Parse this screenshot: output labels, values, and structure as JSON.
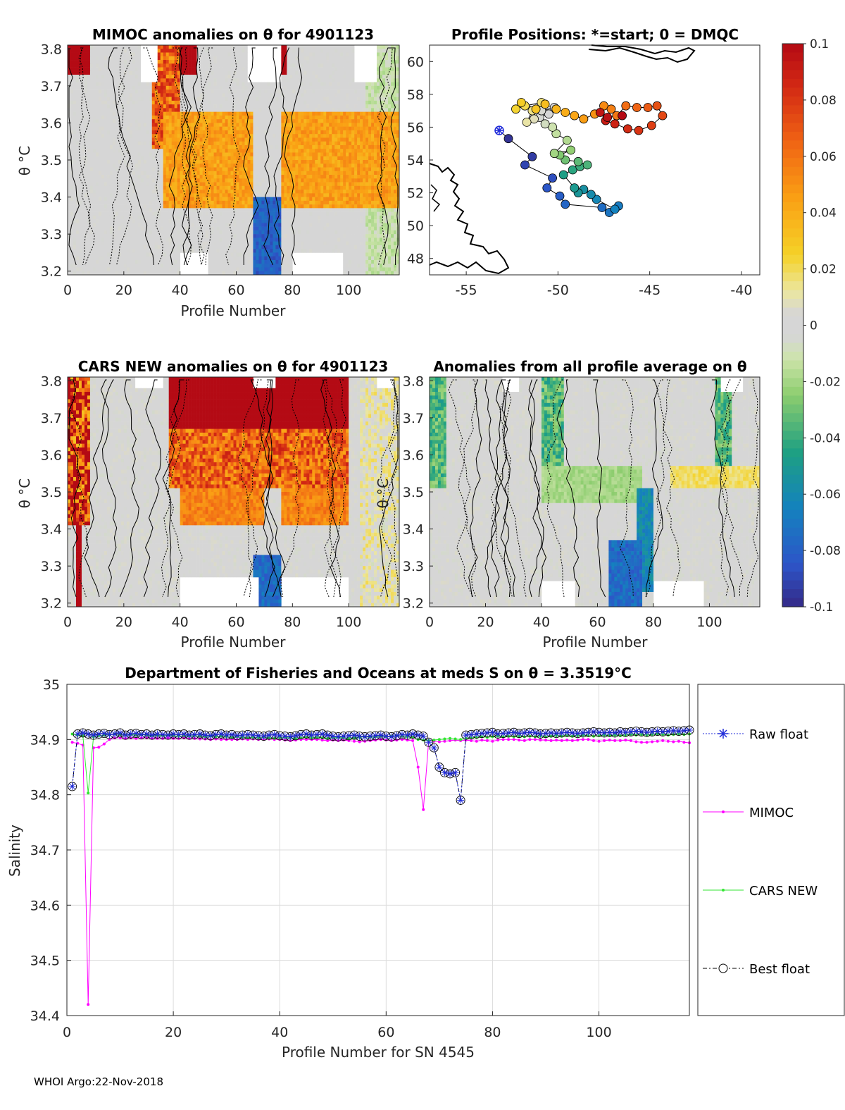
{
  "footer": "WHOI Argo:22-Nov-2018",
  "colors": {
    "raw_float": "#1f2bd9",
    "mimoc": "#ff00ff",
    "cars": "#33e633",
    "best": "#000000",
    "grid": "#dcdcdc",
    "axis": "#262626"
  },
  "chart_data": [
    {
      "id": "mimoc_panel",
      "type": "heatmap",
      "title": "MIMOC anomalies on θ  for 4901123",
      "xlabel": "Profile Number",
      "ylabel": "θ °C",
      "xlim": [
        0,
        118
      ],
      "ylim": [
        3.19,
        3.81
      ],
      "xticks": [
        "0",
        "20",
        "40",
        "60",
        "80",
        "100"
      ],
      "yticks": [
        "3.2",
        "3.3",
        "3.4",
        "3.5",
        "3.6",
        "3.7",
        "3.8"
      ]
    },
    {
      "id": "positions_panel",
      "type": "scatter",
      "title": "Profile Positions: *=start; 0 = DMQC",
      "xlim": [
        -57,
        -39
      ],
      "ylim": [
        47,
        61
      ],
      "xticks": [
        "-55",
        "-50",
        "-45",
        "-40"
      ],
      "yticks": [
        "48",
        "50",
        "52",
        "54",
        "56",
        "58",
        "60"
      ],
      "start": [
        -53.2,
        55.8
      ],
      "track": [
        [
          -53.2,
          55.8
        ],
        [
          -52.7,
          55.3
        ],
        [
          -51.4,
          54.2
        ],
        [
          -51.8,
          53.7
        ],
        [
          -50.3,
          52.9
        ],
        [
          -50.6,
          52.3
        ],
        [
          -49.9,
          51.8
        ],
        [
          -49.6,
          51.3
        ],
        [
          -47.6,
          51.1
        ],
        [
          -47.2,
          50.8
        ],
        [
          -46.7,
          51.2
        ],
        [
          -46.9,
          51.0
        ],
        [
          -47.9,
          51.6
        ],
        [
          -48.2,
          51.9
        ],
        [
          -48.6,
          52.2
        ],
        [
          -48.9,
          52.0
        ],
        [
          -49.1,
          52.3
        ],
        [
          -49.7,
          53.1
        ],
        [
          -49.2,
          53.4
        ],
        [
          -48.8,
          53.6
        ],
        [
          -48.4,
          53.7
        ],
        [
          -48.9,
          53.9
        ],
        [
          -49.6,
          54.0
        ],
        [
          -49.9,
          54.3
        ],
        [
          -49.3,
          54.6
        ],
        [
          -50.2,
          54.4
        ],
        [
          -49.5,
          55.2
        ],
        [
          -50.1,
          55.6
        ],
        [
          -50.3,
          56.0
        ],
        [
          -50.7,
          56.2
        ],
        [
          -51.0,
          56.6
        ],
        [
          -50.5,
          56.8
        ],
        [
          -50.2,
          57.2
        ],
        [
          -50.9,
          57.0
        ],
        [
          -51.3,
          56.5
        ],
        [
          -51.7,
          56.3
        ],
        [
          -51.4,
          57.0
        ],
        [
          -50.9,
          57.5
        ],
        [
          -51.8,
          57.3
        ],
        [
          -52.3,
          57.1
        ],
        [
          -52.0,
          57.5
        ],
        [
          -51.2,
          57.1
        ],
        [
          -50.7,
          57.4
        ],
        [
          -50.1,
          57.1
        ],
        [
          -49.6,
          56.9
        ],
        [
          -49.1,
          56.7
        ],
        [
          -48.6,
          56.5
        ],
        [
          -48.0,
          56.8
        ],
        [
          -47.5,
          57.3
        ],
        [
          -47.1,
          57.1
        ],
        [
          -46.8,
          56.7
        ],
        [
          -46.3,
          57.3
        ],
        [
          -45.7,
          57.2
        ],
        [
          -45.1,
          57.2
        ],
        [
          -44.6,
          57.3
        ],
        [
          -44.3,
          56.7
        ],
        [
          -44.9,
          56.1
        ],
        [
          -45.6,
          55.8
        ],
        [
          -46.2,
          55.9
        ],
        [
          -46.9,
          56.2
        ],
        [
          -47.4,
          56.4
        ],
        [
          -47.7,
          56.9
        ],
        [
          -47.3,
          56.6
        ],
        [
          -46.5,
          56.7
        ]
      ]
    },
    {
      "id": "cars_panel",
      "type": "heatmap",
      "title": "CARS NEW anomalies on θ for 4901123",
      "xlabel": "Profile Number",
      "ylabel": "θ °C",
      "xlim": [
        0,
        118
      ],
      "ylim": [
        3.19,
        3.81
      ],
      "xticks": [
        "0",
        "20",
        "40",
        "60",
        "80",
        "100"
      ],
      "yticks": [
        "3.2",
        "3.3",
        "3.4",
        "3.5",
        "3.6",
        "3.7",
        "3.8"
      ]
    },
    {
      "id": "avg_panel",
      "type": "heatmap",
      "title": "Anomalies from all profile average on θ",
      "xlabel": "Profile Number",
      "ylabel": "θ °C",
      "xlim": [
        0,
        118
      ],
      "ylim": [
        3.19,
        3.81
      ],
      "xticks": [
        "0",
        "20",
        "40",
        "60",
        "80",
        "100"
      ],
      "yticks": [
        "3.2",
        "3.3",
        "3.4",
        "3.5",
        "3.6",
        "3.7",
        "3.8"
      ]
    },
    {
      "id": "colorbar",
      "type": "heatmap",
      "range": [
        -0.1,
        0.1
      ],
      "ticks": [
        "0.1",
        "0.08",
        "0.06",
        "0.04",
        "0.02",
        "0",
        "-0.02",
        "-0.04",
        "-0.06",
        "-0.08",
        "-0.1"
      ]
    },
    {
      "id": "salinity_panel",
      "type": "line",
      "title": "Department of Fisheries and Oceans at meds S on θ = 3.3519°C",
      "xlabel": "Profile Number for SN 4545",
      "ylabel": "Salinity",
      "xlim": [
        0,
        117
      ],
      "ylim": [
        34.4,
        35.0
      ],
      "xticks": [
        "0",
        "20",
        "40",
        "60",
        "80",
        "100"
      ],
      "yticks": [
        "34.4",
        "34.5",
        "34.6",
        "34.7",
        "34.8",
        "34.9",
        "35"
      ],
      "legend": [
        "Raw float",
        "MIMOC",
        "CARS NEW",
        "Best float"
      ],
      "legend_location": "outside-right",
      "series": [
        {
          "name": "Raw float",
          "start": 1,
          "values": [
            34.815,
            34.91,
            34.912,
            34.91,
            34.908,
            34.91,
            34.911,
            34.909,
            34.91,
            34.912,
            34.908,
            34.91,
            34.911,
            34.909,
            34.91,
            34.908,
            34.91,
            34.909,
            34.908,
            34.91,
            34.909,
            34.91,
            34.908,
            34.909,
            34.91,
            34.908,
            34.907,
            34.909,
            34.91,
            34.908,
            34.909,
            34.907,
            34.908,
            34.909,
            34.908,
            34.907,
            34.906,
            34.908,
            34.909,
            34.907,
            34.906,
            34.905,
            34.907,
            34.909,
            34.91,
            34.908,
            34.909,
            34.91,
            34.908,
            34.906,
            34.905,
            34.906,
            34.907,
            34.908,
            34.906,
            34.905,
            34.906,
            34.907,
            34.908,
            34.906,
            34.905,
            34.907,
            34.909,
            34.908,
            34.91,
            34.908,
            34.906,
            34.895,
            34.885,
            34.85,
            34.84,
            34.838,
            34.84,
            34.79,
            34.908,
            34.909,
            34.91,
            34.911,
            34.912,
            34.913,
            34.91,
            34.911,
            34.912,
            34.913,
            34.911,
            34.912,
            34.913,
            34.912,
            34.91,
            34.911,
            34.912,
            34.911,
            34.912,
            34.913,
            34.912,
            34.911,
            34.912,
            34.913,
            34.914,
            34.913,
            34.912,
            34.913,
            34.912,
            34.914,
            34.913,
            34.914,
            34.915,
            34.914,
            34.913,
            34.914,
            34.915,
            34.914,
            34.915,
            34.916,
            34.915,
            34.916,
            34.917
          ]
        },
        {
          "name": "MIMOC",
          "start": 1,
          "values": [
            34.895,
            34.893,
            34.89,
            34.42,
            34.885,
            34.886,
            34.892,
            34.9,
            34.903,
            34.903,
            34.902,
            34.903,
            34.902,
            34.903,
            34.903,
            34.902,
            34.902,
            34.902,
            34.903,
            34.902,
            34.902,
            34.903,
            34.902,
            34.902,
            34.901,
            34.901,
            34.9,
            34.901,
            34.9,
            34.9,
            34.9,
            34.9,
            34.901,
            34.9,
            34.901,
            34.9,
            34.9,
            34.901,
            34.9,
            34.9,
            34.899,
            34.898,
            34.899,
            34.9,
            34.9,
            34.9,
            34.9,
            34.899,
            34.898,
            34.899,
            34.898,
            34.899,
            34.898,
            34.897,
            34.896,
            34.897,
            34.898,
            34.899,
            34.9,
            34.899,
            34.898,
            34.899,
            34.9,
            34.899,
            34.898,
            34.85,
            34.773,
            34.898,
            34.897,
            34.896,
            34.897,
            34.898,
            34.899,
            34.898,
            34.899,
            34.898,
            34.897,
            34.899,
            34.898,
            34.897,
            34.899,
            34.9,
            34.9,
            34.9,
            34.899,
            34.898,
            34.9,
            34.9,
            34.899,
            34.899,
            34.898,
            34.899,
            34.898,
            34.899,
            34.898,
            34.899,
            34.9,
            34.9,
            34.898,
            34.897,
            34.898,
            34.899,
            34.898,
            34.898,
            34.899,
            34.898,
            34.896,
            34.895,
            34.895,
            34.896,
            34.897,
            34.898,
            34.897,
            34.896,
            34.897,
            34.895,
            34.894
          ]
        },
        {
          "name": "CARS NEW",
          "start": 1,
          "values": [
            34.91,
            34.908,
            34.907,
            34.803,
            34.905,
            34.907,
            34.908,
            34.909,
            34.91,
            34.909,
            34.908,
            34.909,
            34.908,
            34.909,
            34.908,
            34.907,
            34.908,
            34.907,
            34.908,
            34.907,
            34.906,
            34.907,
            34.906,
            34.907,
            34.906,
            34.905,
            34.906,
            34.905,
            34.906,
            34.905,
            34.904,
            34.905,
            34.904,
            34.903,
            34.904,
            34.903,
            34.904,
            34.903,
            34.902,
            34.903,
            34.904,
            34.903,
            34.902,
            34.903,
            34.904,
            34.903,
            34.904,
            34.903,
            34.902,
            34.903,
            34.904,
            34.903,
            34.902,
            34.903,
            34.904,
            34.905,
            34.904,
            34.905,
            34.906,
            34.905,
            34.906,
            34.907,
            34.906,
            34.905,
            34.904,
            34.9,
            34.899,
            34.898,
            34.899,
            34.9,
            34.901,
            34.902,
            34.901,
            34.9,
            34.902,
            34.903,
            34.904,
            34.905,
            34.904,
            34.905,
            34.906,
            34.905,
            34.906,
            34.905,
            34.906,
            34.905,
            34.906,
            34.905,
            34.906,
            34.905,
            34.906,
            34.907,
            34.906,
            34.907,
            34.906,
            34.907,
            34.908,
            34.907,
            34.906,
            34.907,
            34.908,
            34.907,
            34.908,
            34.907,
            34.908,
            34.909,
            34.908,
            34.909,
            34.908,
            34.909,
            34.91,
            34.909,
            34.908,
            34.909,
            34.91,
            34.909,
            34.91
          ]
        },
        {
          "name": "Best float",
          "start": 1,
          "values": [
            34.815,
            34.91,
            34.912,
            34.91,
            34.908,
            34.91,
            34.911,
            34.909,
            34.91,
            34.912,
            34.908,
            34.91,
            34.911,
            34.909,
            34.91,
            34.908,
            34.91,
            34.909,
            34.908,
            34.91,
            34.909,
            34.91,
            34.908,
            34.909,
            34.91,
            34.908,
            34.907,
            34.909,
            34.91,
            34.908,
            34.909,
            34.907,
            34.908,
            34.909,
            34.908,
            34.907,
            34.906,
            34.908,
            34.909,
            34.907,
            34.906,
            34.905,
            34.907,
            34.909,
            34.91,
            34.908,
            34.909,
            34.91,
            34.908,
            34.906,
            34.905,
            34.906,
            34.907,
            34.908,
            34.906,
            34.905,
            34.906,
            34.907,
            34.908,
            34.906,
            34.905,
            34.907,
            34.909,
            34.908,
            34.91,
            34.908,
            34.906,
            34.895,
            34.885,
            34.85,
            34.84,
            34.838,
            34.84,
            34.79,
            34.908,
            34.909,
            34.91,
            34.911,
            34.912,
            34.913,
            34.91,
            34.911,
            34.912,
            34.913,
            34.911,
            34.912,
            34.913,
            34.912,
            34.91,
            34.911,
            34.912,
            34.911,
            34.912,
            34.913,
            34.912,
            34.911,
            34.912,
            34.913,
            34.914,
            34.913,
            34.912,
            34.913,
            34.912,
            34.914,
            34.913,
            34.914,
            34.915,
            34.914,
            34.913,
            34.914,
            34.915,
            34.914,
            34.915,
            34.916,
            34.915,
            34.916,
            34.917
          ]
        }
      ]
    }
  ]
}
